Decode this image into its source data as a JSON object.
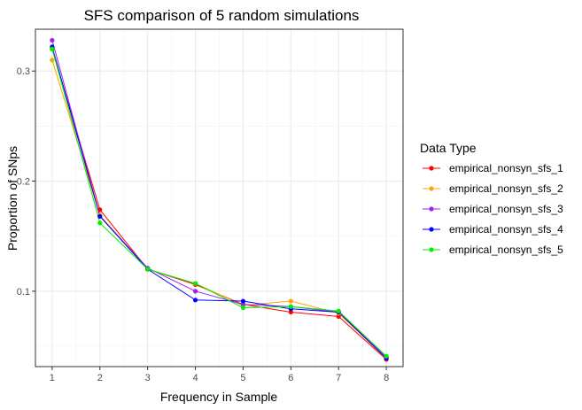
{
  "chart_data": {
    "type": "line",
    "title": "SFS comparison of 5 random simulations",
    "xlabel": "Frequency in Sample",
    "ylabel": "Proportion of SNps",
    "x": [
      1,
      2,
      3,
      4,
      5,
      6,
      7,
      8
    ],
    "xlim": [
      0.65,
      8.35
    ],
    "ylim": [
      0.0315,
      0.338
    ],
    "x_ticks": [
      "1",
      "2",
      "3",
      "4",
      "5",
      "6",
      "7",
      "8"
    ],
    "y_ticks": [
      0.1,
      0.2,
      0.3
    ],
    "y_tick_labels": [
      "0.1",
      "0.2",
      "0.3"
    ],
    "grid": true,
    "legend": {
      "title": "Data Type",
      "position": "right"
    },
    "series": [
      {
        "name": "empirical_nonsyn_sfs_1",
        "color": "#ff0000",
        "values": [
          0.32,
          0.174,
          0.12,
          0.106,
          0.088,
          0.081,
          0.077,
          0.038
        ]
      },
      {
        "name": "empirical_nonsyn_sfs_2",
        "color": "#ffa500",
        "values": [
          0.31,
          0.169,
          0.12,
          0.107,
          0.087,
          0.091,
          0.08,
          0.039
        ]
      },
      {
        "name": "empirical_nonsyn_sfs_3",
        "color": "#a020f0",
        "values": [
          0.328,
          0.168,
          0.121,
          0.1,
          0.088,
          0.086,
          0.081,
          0.04
        ]
      },
      {
        "name": "empirical_nonsyn_sfs_4",
        "color": "#0000ff",
        "values": [
          0.322,
          0.168,
          0.12,
          0.092,
          0.091,
          0.084,
          0.081,
          0.039
        ]
      },
      {
        "name": "empirical_nonsyn_sfs_5",
        "color": "#00ee00",
        "values": [
          0.32,
          0.162,
          0.12,
          0.107,
          0.085,
          0.086,
          0.082,
          0.041
        ]
      }
    ]
  }
}
